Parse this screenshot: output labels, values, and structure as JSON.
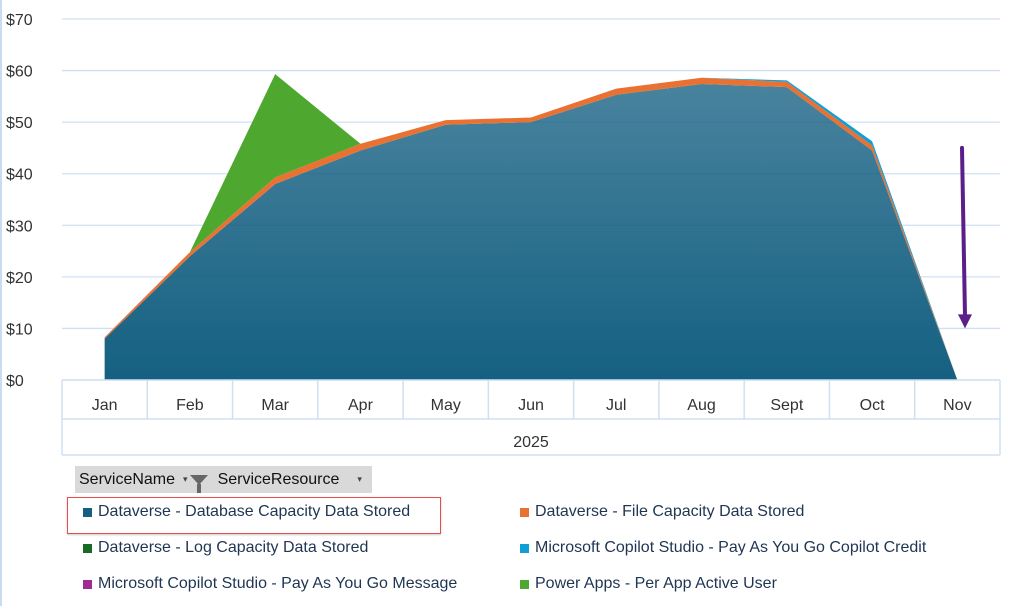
{
  "chart_data": {
    "type": "area",
    "stacked": true,
    "categories": [
      "Jan",
      "Feb",
      "Mar",
      "Apr",
      "May",
      "Jun",
      "Jul",
      "Aug",
      "Sept",
      "Oct",
      "Nov"
    ],
    "xlabel": "2025",
    "ylim": [
      0,
      70
    ],
    "yticks": [
      "$0",
      "$10",
      "$20",
      "$30",
      "$40",
      "$50",
      "$60",
      "$70"
    ],
    "grid": true,
    "series": [
      {
        "name": "Dataverse - Database Capacity Data Stored",
        "color": "#156082",
        "values": [
          8,
          24,
          38,
          44.5,
          49.5,
          50,
          55.3,
          57.4,
          56.8,
          44.5,
          0
        ]
      },
      {
        "name": "Dataverse - File Capacity Data Stored",
        "color": "#e97132",
        "values": [
          0.3,
          0.8,
          1.3,
          1.3,
          0.9,
          0.9,
          1.2,
          1.2,
          1,
          1,
          0
        ]
      },
      {
        "name": "Dataverse - Log Capacity Data Stored",
        "color": "#196b24",
        "values": [
          0,
          0,
          0,
          0,
          0,
          0,
          0,
          0,
          0,
          0,
          0
        ]
      },
      {
        "name": "Microsoft Copilot Studio - Pay As You Go Copilot Credit",
        "color": "#0f9ed5",
        "values": [
          0,
          0,
          0,
          0,
          0,
          0,
          0,
          0,
          0.3,
          0.8,
          0
        ]
      },
      {
        "name": "Microsoft Copilot Studio - Pay As You Go Message",
        "color": "#a02b93",
        "values": [
          0,
          0,
          0,
          0,
          0,
          0,
          0,
          0,
          0,
          0,
          0
        ]
      },
      {
        "name": "Power Apps - Per App Active User",
        "color": "#4ea72e",
        "values": [
          0,
          0,
          20,
          0,
          0,
          0,
          0,
          0,
          0,
          0,
          0
        ]
      }
    ],
    "annotation": {
      "type": "arrow",
      "color": "#5b1f8a",
      "direction": "down",
      "from_value": 45,
      "to_value": 10,
      "near": "Nov"
    },
    "legend": "bottom"
  },
  "filters": {
    "service_name": "ServiceName",
    "service_resource": "ServiceResource"
  },
  "highlighted_legend": "Dataverse - Database Capacity Data Stored"
}
